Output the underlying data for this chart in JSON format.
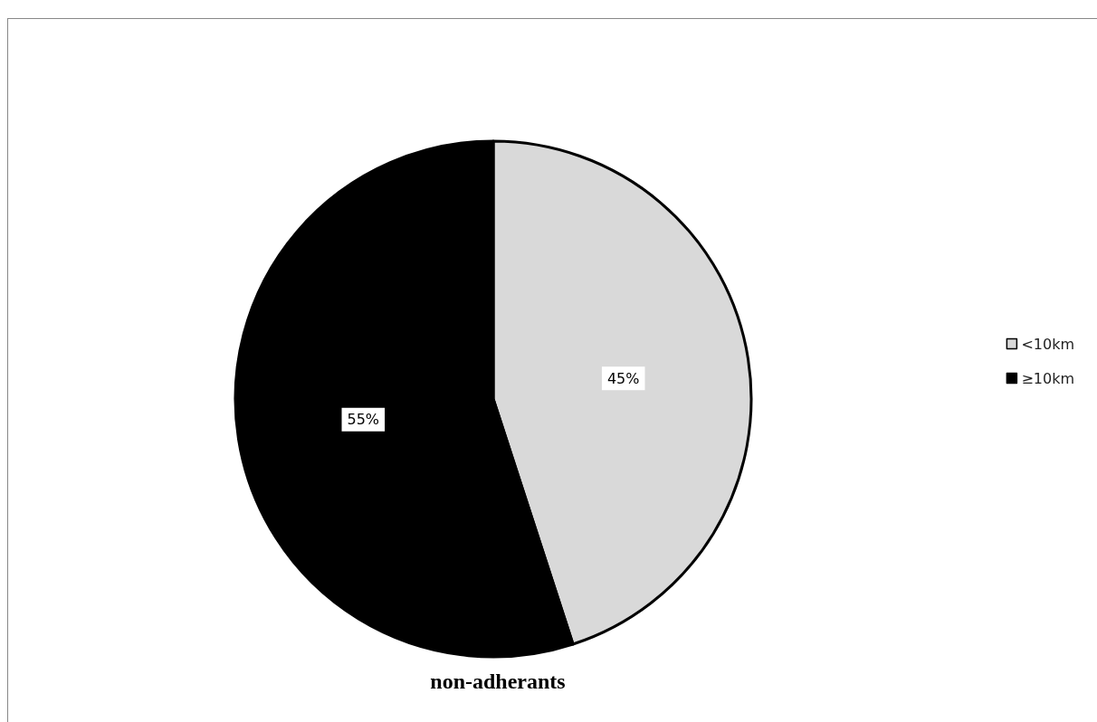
{
  "chart_data": {
    "type": "pie",
    "title": "non-adherants",
    "categories": [
      "<10km",
      "≥10km"
    ],
    "values": [
      45,
      55
    ],
    "colors": [
      "#d9d9d9",
      "#000000"
    ],
    "value_labels": [
      "45%",
      "55%"
    ],
    "legend": "right"
  }
}
